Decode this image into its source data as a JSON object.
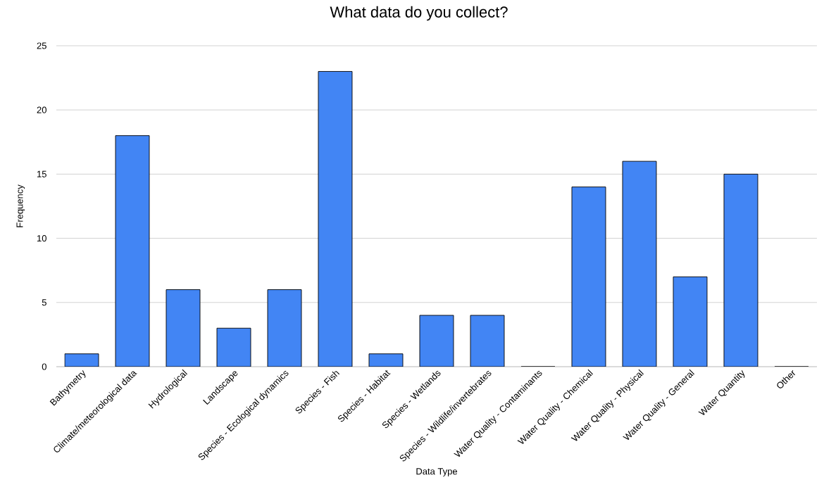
{
  "chart_data": {
    "type": "bar",
    "title": "What data do you collect?",
    "xlabel": "Data Type",
    "ylabel": "Frequency",
    "categories": [
      "Bathymetry",
      "Climate/meteorological data",
      "Hydrological",
      "Landscape",
      "Species - Ecological dynamics",
      "Species - Fish",
      "Species - Habitat",
      "Species - Wetlands",
      "Species - Wildlife/invertebrates",
      "Water Quality - Contaminants",
      "Water Quality - Chemical",
      "Water Quality - Physical",
      "Water Quality - General",
      "Water Quantity",
      "Other"
    ],
    "values": [
      1,
      18,
      6,
      3,
      6,
      23,
      1,
      4,
      4,
      0,
      14,
      16,
      7,
      15,
      0
    ],
    "color": "#4285f4",
    "ylim": [
      0,
      25
    ],
    "yticks": [
      0,
      5,
      10,
      15,
      20,
      25
    ],
    "grid": "y"
  }
}
